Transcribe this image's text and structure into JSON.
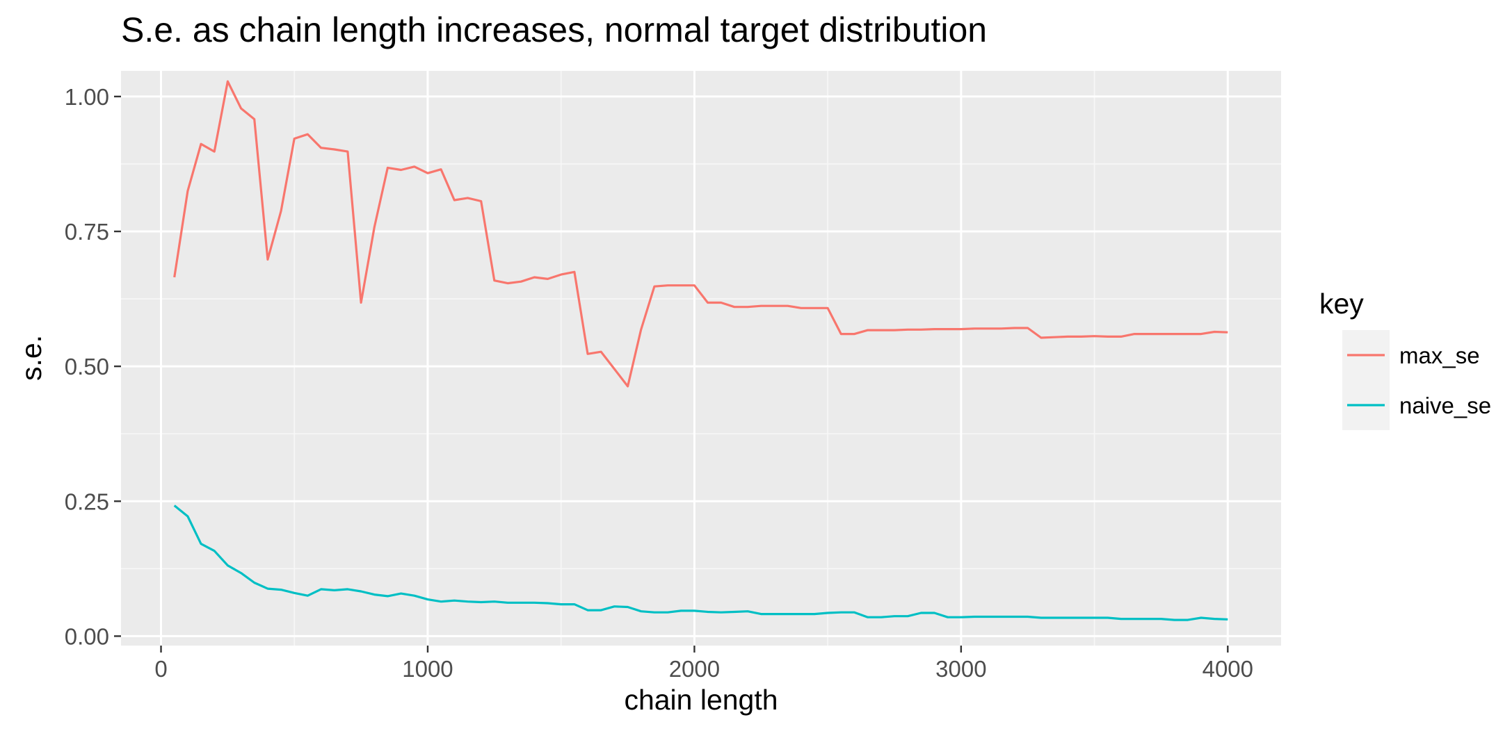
{
  "chart_data": {
    "type": "line",
    "title": "S.e. as chain length increases, normal target distribution",
    "xlabel": "chain length",
    "ylabel": "s.e.",
    "xlim": [
      -150,
      4200
    ],
    "ylim": [
      -0.0175,
      1.0475
    ],
    "x_ticks": [
      0,
      1000,
      2000,
      3000,
      4000
    ],
    "x_tick_labels": [
      "0",
      "1000",
      "2000",
      "3000",
      "4000"
    ],
    "y_ticks": [
      0,
      0.25,
      0.5,
      0.75,
      1.0
    ],
    "y_tick_labels": [
      "0.00",
      "0.25",
      "0.50",
      "0.75",
      "1.00"
    ],
    "grid": true,
    "legend": {
      "title": "key",
      "position": "right"
    },
    "series": [
      {
        "name": "max_se",
        "color": "#F8766D",
        "x": [
          50,
          100,
          150,
          200,
          250,
          300,
          350,
          400,
          450,
          500,
          550,
          600,
          650,
          700,
          750,
          800,
          850,
          900,
          950,
          1000,
          1050,
          1100,
          1150,
          1200,
          1250,
          1300,
          1350,
          1400,
          1450,
          1500,
          1550,
          1600,
          1650,
          1700,
          1750,
          1800,
          1850,
          1900,
          1950,
          2000,
          2050,
          2100,
          2150,
          2200,
          2250,
          2300,
          2350,
          2400,
          2450,
          2500,
          2550,
          2600,
          2650,
          2700,
          2750,
          2800,
          2850,
          2900,
          2950,
          3000,
          3050,
          3100,
          3150,
          3200,
          3250,
          3300,
          3350,
          3400,
          3450,
          3500,
          3550,
          3600,
          3650,
          3700,
          3750,
          3800,
          3850,
          3900,
          3950,
          4000
        ],
        "y": [
          0.665,
          0.825,
          0.912,
          0.898,
          1.028,
          0.978,
          0.958,
          0.698,
          0.788,
          0.922,
          0.93,
          0.905,
          0.902,
          0.898,
          0.618,
          0.758,
          0.868,
          0.864,
          0.87,
          0.858,
          0.865,
          0.808,
          0.812,
          0.806,
          0.659,
          0.654,
          0.657,
          0.665,
          0.662,
          0.67,
          0.675,
          0.523,
          0.527,
          0.495,
          0.463,
          0.568,
          0.648,
          0.65,
          0.65,
          0.65,
          0.618,
          0.618,
          0.61,
          0.61,
          0.612,
          0.612,
          0.612,
          0.608,
          0.608,
          0.608,
          0.56,
          0.56,
          0.567,
          0.567,
          0.567,
          0.568,
          0.568,
          0.569,
          0.569,
          0.569,
          0.57,
          0.57,
          0.57,
          0.571,
          0.571,
          0.553,
          0.554,
          0.555,
          0.555,
          0.556,
          0.555,
          0.555,
          0.56,
          0.56,
          0.56,
          0.56,
          0.56,
          0.56,
          0.564,
          0.563
        ]
      },
      {
        "name": "naive_se",
        "color": "#00BFC4",
        "x": [
          50,
          100,
          150,
          200,
          250,
          300,
          350,
          400,
          450,
          500,
          550,
          600,
          650,
          700,
          750,
          800,
          850,
          900,
          950,
          1000,
          1050,
          1100,
          1150,
          1200,
          1250,
          1300,
          1350,
          1400,
          1450,
          1500,
          1550,
          1600,
          1650,
          1700,
          1750,
          1800,
          1850,
          1900,
          1950,
          2000,
          2050,
          2100,
          2150,
          2200,
          2250,
          2300,
          2350,
          2400,
          2450,
          2500,
          2550,
          2600,
          2650,
          2700,
          2750,
          2800,
          2850,
          2900,
          2950,
          3000,
          3050,
          3100,
          3150,
          3200,
          3250,
          3300,
          3350,
          3400,
          3450,
          3500,
          3550,
          3600,
          3650,
          3700,
          3750,
          3800,
          3850,
          3900,
          3950,
          4000
        ],
        "y": [
          0.242,
          0.222,
          0.171,
          0.158,
          0.131,
          0.117,
          0.099,
          0.088,
          0.086,
          0.08,
          0.075,
          0.087,
          0.085,
          0.087,
          0.083,
          0.077,
          0.074,
          0.079,
          0.075,
          0.068,
          0.064,
          0.066,
          0.064,
          0.063,
          0.064,
          0.062,
          0.062,
          0.062,
          0.061,
          0.059,
          0.059,
          0.048,
          0.048,
          0.055,
          0.054,
          0.046,
          0.044,
          0.044,
          0.047,
          0.047,
          0.045,
          0.044,
          0.045,
          0.046,
          0.041,
          0.041,
          0.041,
          0.041,
          0.041,
          0.043,
          0.044,
          0.044,
          0.035,
          0.035,
          0.037,
          0.037,
          0.043,
          0.043,
          0.035,
          0.035,
          0.036,
          0.036,
          0.036,
          0.036,
          0.036,
          0.034,
          0.034,
          0.034,
          0.034,
          0.034,
          0.034,
          0.032,
          0.032,
          0.032,
          0.032,
          0.03,
          0.03,
          0.034,
          0.032,
          0.031
        ]
      }
    ]
  }
}
